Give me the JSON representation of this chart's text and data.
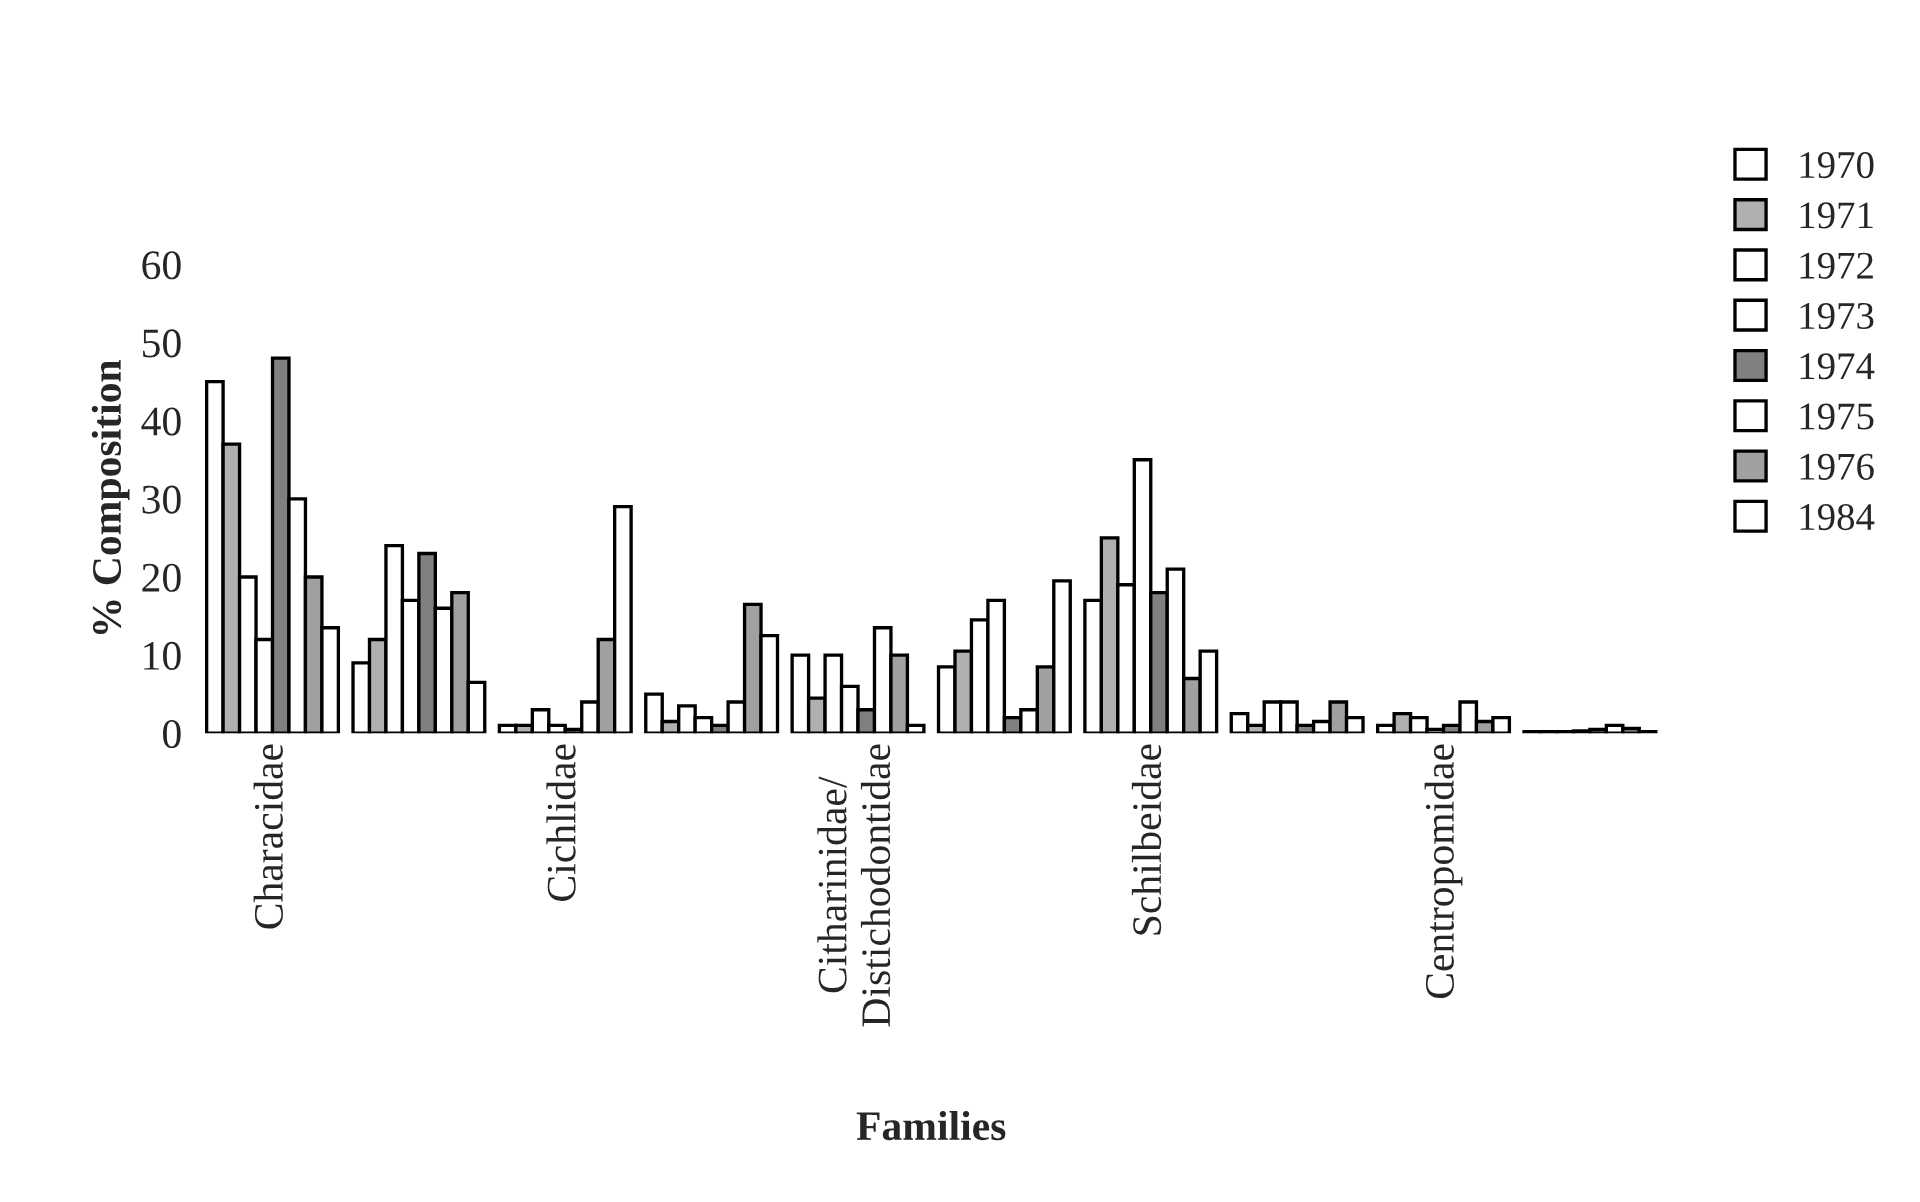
{
  "chart_data": {
    "type": "bar",
    "xlabel": "Families",
    "ylabel": "% Composition",
    "categories": [
      "Characidae",
      null,
      "Cichlidae",
      null,
      "Citharinidae/\nDistichodontidae",
      null,
      "Schilbeidae",
      null,
      "Centropomidae",
      null
    ],
    "series": [
      {
        "name": "1970",
        "color": "#ffffff",
        "values": [
          45,
          9,
          1,
          5,
          10,
          8.5,
          17,
          2.5,
          1,
          0.2
        ]
      },
      {
        "name": "1971",
        "color": "#b0b0b0",
        "values": [
          37,
          12,
          1,
          1.5,
          4.5,
          10.5,
          25,
          1,
          2.5,
          0.2
        ]
      },
      {
        "name": "1972",
        "color": "#ffffff",
        "values": [
          20,
          24,
          3,
          3.5,
          10,
          14.5,
          19,
          4,
          2,
          0.2
        ]
      },
      {
        "name": "1973",
        "color": "#ffffff",
        "values": [
          12,
          17,
          1,
          2,
          6,
          17,
          35,
          4,
          0.5,
          0.3
        ]
      },
      {
        "name": "1974",
        "color": "#808080",
        "values": [
          48,
          23,
          0.5,
          1,
          3,
          2,
          18,
          1,
          1,
          0.5
        ]
      },
      {
        "name": "1975",
        "color": "#ffffff",
        "values": [
          30,
          16,
          4,
          4,
          13.5,
          3,
          21,
          1.5,
          4,
          1
        ]
      },
      {
        "name": "1976",
        "color": "#a0a0a0",
        "values": [
          20,
          18,
          12,
          16.5,
          10,
          8.5,
          7,
          4,
          1.5,
          0.6
        ]
      },
      {
        "name": "1984",
        "color": "#ffffff",
        "values": [
          13.5,
          6.5,
          29,
          12.5,
          1,
          19.5,
          10.5,
          2,
          2,
          0.2
        ]
      }
    ],
    "ylim": [
      0,
      60
    ],
    "yticks": [
      0,
      10,
      20,
      30,
      40,
      50,
      60
    ],
    "grid": false,
    "legend": "top right"
  }
}
